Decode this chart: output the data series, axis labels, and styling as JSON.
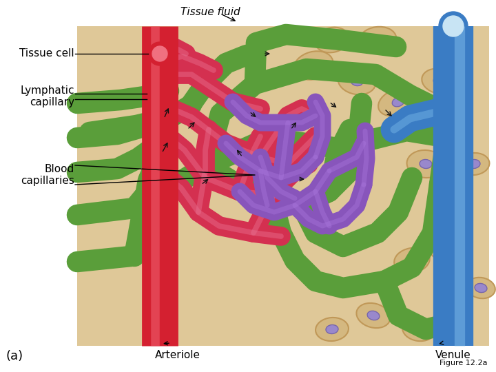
{
  "bg_color": "#ffffff",
  "image_bg": "#dfc898",
  "title": "Figure 12.2a",
  "label_tissue_fluid": "Tissue fluid",
  "label_tissue_cell": "Tissue cell",
  "label_lymphatic": "Lymphatic\ncapillary",
  "label_blood_cap": "Blood\ncapillaries",
  "label_arteriole": "Arteriole",
  "label_venule": "Venule",
  "label_a": "(a)",
  "arteriole_color": "#d42030",
  "arteriole_highlight": "#f06070",
  "venule_color": "#3a7cc4",
  "venule_highlight": "#7ab8e8",
  "blood_cap_color": "#d43050",
  "blood_cap_highlight": "#e87090",
  "lymph_cap_color": "#8855bb",
  "lymph_cap_highlight": "#aa77dd",
  "green_cap_color": "#5a9e3a",
  "cell_face": "#d4b880",
  "cell_edge": "#c09858",
  "nucleus_face": "#9988cc",
  "nucleus_edge": "#7766aa"
}
